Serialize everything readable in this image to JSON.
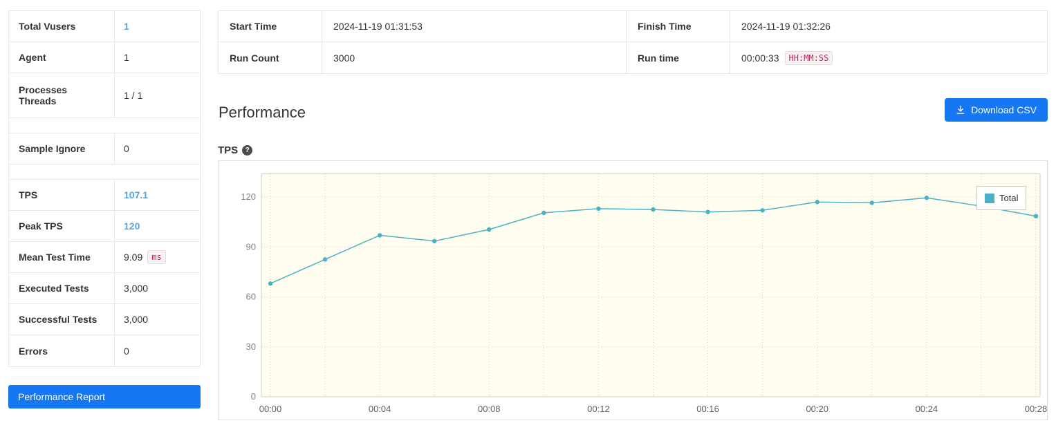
{
  "colors": {
    "accent_blue": "#1677f2",
    "link_blue": "#58a3de",
    "badge_red": "#c7254e",
    "chart_line": "#4bb2c5"
  },
  "stats": {
    "rows": [
      {
        "label": "Total Vusers",
        "value": "1"
      },
      {
        "label": "Agent",
        "value": "1"
      },
      {
        "label_line1": "Processes",
        "label_line2": "Threads",
        "value": "1 / 1"
      },
      {
        "label": "Sample Ignore",
        "value": "0"
      },
      {
        "label": "TPS",
        "value": "107.1"
      },
      {
        "label": "Peak TPS",
        "value": "120"
      },
      {
        "label": "Mean Test Time",
        "value": "9.09",
        "unit": "ms"
      },
      {
        "label": "Executed Tests",
        "value": "3,000"
      },
      {
        "label": "Successful Tests",
        "value": "3,000"
      },
      {
        "label": "Errors",
        "value": "0"
      }
    ],
    "report_button": "Performance Report"
  },
  "info": {
    "start_time_label": "Start Time",
    "start_time": "2024-11-19 01:31:53",
    "finish_time_label": "Finish Time",
    "finish_time": "2024-11-19 01:32:26",
    "run_count_label": "Run Count",
    "run_count": "3000",
    "run_time_label": "Run time",
    "run_time": "00:00:33",
    "run_time_badge": "HH:MM:SS"
  },
  "performance": {
    "heading": "Performance",
    "download_csv": "Download CSV",
    "chart_title": "TPS",
    "help_glyph": "?"
  },
  "chart_data": {
    "type": "line",
    "title": "TPS",
    "x": [
      "00:00",
      "00:02",
      "00:04",
      "00:06",
      "00:08",
      "00:10",
      "00:12",
      "00:14",
      "00:16",
      "00:18",
      "00:20",
      "00:22",
      "00:24",
      "00:26",
      "00:28"
    ],
    "series": [
      {
        "name": "Total",
        "color": "#4bb2c5",
        "values": [
          68,
          82.5,
          97,
          93.5,
          100.5,
          110.5,
          113,
          112.5,
          111,
          112,
          117,
          116.5,
          119.5,
          114.5,
          108.5
        ]
      }
    ],
    "ylim": [
      0,
      120
    ],
    "yticks": [
      0,
      30,
      60,
      90,
      120
    ],
    "xtick_labels_every": 2,
    "grid": true,
    "plot_bg": "#fffdf0",
    "grid_color": "#cccccc",
    "legend_position": "top-right"
  }
}
